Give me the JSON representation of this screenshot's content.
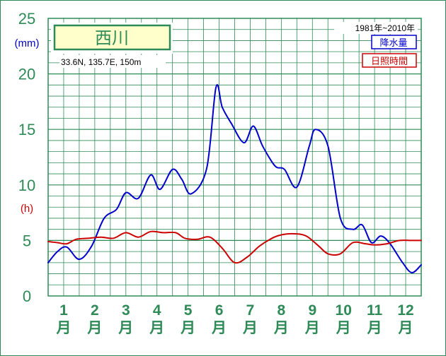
{
  "chart_data": {
    "type": "line",
    "title": "西川",
    "location": "33.6N, 135.7E, 150m",
    "period": "1981年~2010年",
    "categories": [
      "1",
      "2",
      "3",
      "4",
      "5",
      "6",
      "7",
      "8",
      "9",
      "10",
      "11",
      "12"
    ],
    "category_suffix": "月",
    "y_ticks": [
      "0",
      "5",
      "10",
      "15",
      "20",
      "25"
    ],
    "ylim": [
      0,
      25
    ],
    "unit_precip": "(mm)",
    "unit_sun": "(h)",
    "grid": true,
    "legend_position": "top-right",
    "x_range": [
      0.5,
      12.5
    ],
    "colors": {
      "precip": "#0000cc",
      "sun": "#cc0000",
      "grid": "#2e8b57",
      "axis_text": "#2e8b57"
    },
    "series": [
      {
        "name": "降水量",
        "x": [
          0.5,
          0.8,
          1.1,
          1.5,
          1.9,
          2.3,
          2.7,
          3.0,
          3.4,
          3.8,
          4.1,
          4.5,
          4.8,
          5.1,
          5.6,
          5.9,
          6.1,
          6.4,
          6.8,
          7.1,
          7.4,
          7.8,
          8.1,
          8.5,
          8.9,
          9.1,
          9.5,
          9.9,
          10.3,
          10.6,
          10.9,
          11.2,
          11.5,
          11.9,
          12.2,
          12.5
        ],
        "values": [
          3.0,
          4.0,
          4.4,
          3.3,
          4.5,
          7.0,
          7.8,
          9.3,
          8.8,
          10.9,
          9.6,
          11.4,
          10.5,
          9.2,
          11.5,
          18.8,
          17.0,
          15.5,
          13.8,
          15.3,
          13.5,
          11.7,
          11.4,
          9.8,
          13.5,
          15.0,
          13.5,
          7.0,
          6.0,
          6.4,
          4.8,
          5.4,
          4.7,
          3.0,
          2.1,
          2.8
        ]
      },
      {
        "name": "日照時間",
        "x": [
          0.5,
          0.8,
          1.1,
          1.4,
          1.8,
          2.2,
          2.6,
          3.0,
          3.4,
          3.8,
          4.2,
          4.6,
          4.9,
          5.3,
          5.7,
          6.1,
          6.5,
          6.9,
          7.3,
          7.7,
          8.0,
          8.4,
          8.8,
          9.2,
          9.5,
          9.9,
          10.3,
          10.7,
          11.0,
          11.4,
          11.8,
          12.2,
          12.5
        ],
        "values": [
          4.9,
          4.8,
          4.7,
          5.1,
          5.2,
          5.3,
          5.2,
          5.7,
          5.3,
          5.8,
          5.7,
          5.7,
          5.2,
          5.1,
          5.3,
          4.3,
          3.0,
          3.5,
          4.5,
          5.2,
          5.5,
          5.6,
          5.4,
          4.5,
          3.8,
          3.8,
          4.8,
          4.7,
          4.6,
          4.7,
          5.0,
          5.0,
          5.0
        ]
      }
    ]
  }
}
